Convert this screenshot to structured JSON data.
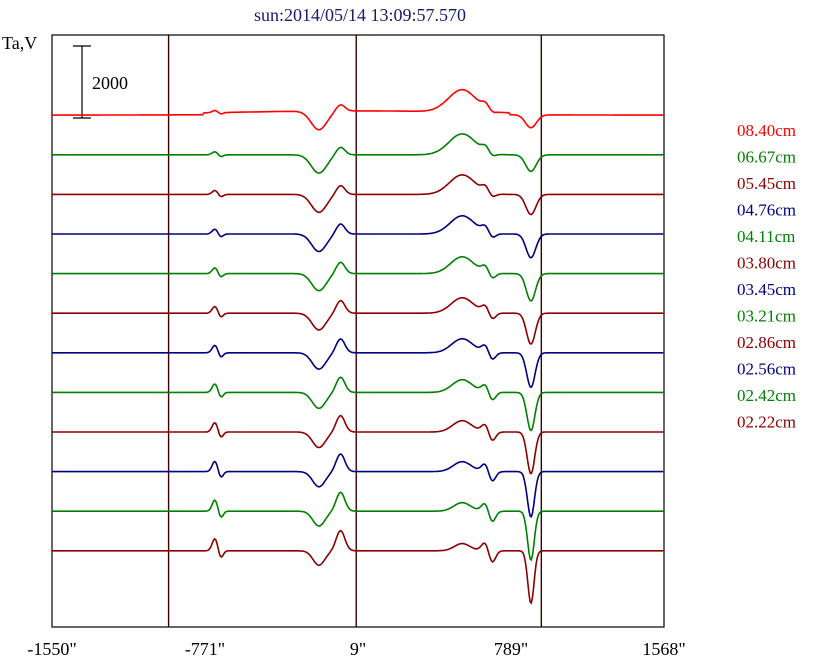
{
  "chart_data": {
    "type": "line",
    "title": "sun:2014/05/14 13:09:57.570",
    "ylabel": "Ta,V",
    "scale_bar_label": "2000",
    "x_ticks": [
      {
        "value": -1550,
        "label": "-1550\""
      },
      {
        "value": -771,
        "label": "-771\""
      },
      {
        "value": 9,
        "label": "9\""
      },
      {
        "value": 789,
        "label": "789\""
      },
      {
        "value": 1568,
        "label": "1568\""
      }
    ],
    "xlim": [
      -1550,
      1568
    ],
    "vertical_lines": [
      -956,
      0,
      943
    ],
    "legend_placement": "right",
    "series_colors": {
      "red": "#ff0000",
      "green": "#008000",
      "darkred": "#8b0000",
      "navy": "#000080"
    },
    "series": [
      {
        "name": "08.40cm",
        "color": "red",
        "baseline": 8800
      },
      {
        "name": "06.67cm",
        "color": "green",
        "baseline": 7700
      },
      {
        "name": "05.45cm",
        "color": "darkred",
        "baseline": 6600
      },
      {
        "name": "04.76cm",
        "color": "navy",
        "baseline": 5500
      },
      {
        "name": "04.11cm",
        "color": "green",
        "baseline": 4400
      },
      {
        "name": "03.80cm",
        "color": "darkred",
        "baseline": 3300
      },
      {
        "name": "03.45cm",
        "color": "navy",
        "baseline": 2200
      },
      {
        "name": "03.21cm",
        "color": "green",
        "baseline": 1100
      },
      {
        "name": "02.86cm",
        "color": "darkred",
        "baseline": 0
      },
      {
        "name": "02.56cm",
        "color": "navy",
        "baseline": -1100
      },
      {
        "name": "02.42cm",
        "color": "green",
        "baseline": -2200
      },
      {
        "name": "02.22cm",
        "color": "darkred",
        "baseline": -3300
      }
    ]
  }
}
